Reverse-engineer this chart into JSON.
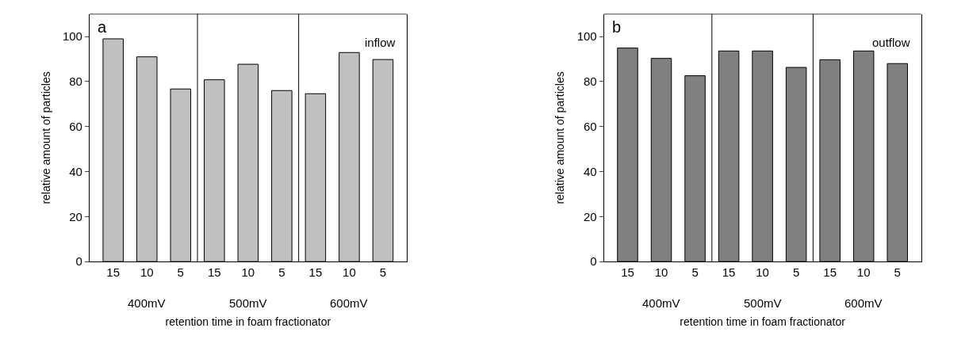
{
  "chart_data": [
    {
      "type": "bar",
      "categories": [
        "15",
        "10",
        "5",
        "15",
        "10",
        "5",
        "15",
        "10",
        "5"
      ],
      "values": [
        99,
        91,
        76.7,
        80.8,
        87.7,
        76,
        74.6,
        92.9,
        89.8
      ],
      "color": "#c0c0c0",
      "xlabel": "retention time in foam fractionator",
      "ylabel": "relative amount of particles",
      "ylim": [
        0,
        110
      ],
      "yticks": [
        0,
        20,
        40,
        60,
        80,
        100
      ],
      "annotations": [
        "a",
        "inflow",
        "400mV",
        "500mV",
        "600mV"
      ]
    },
    {
      "type": "bar",
      "categories": [
        "15",
        "10",
        "5",
        "15",
        "10",
        "5",
        "15",
        "10",
        "5"
      ],
      "values": [
        94.9,
        90.3,
        82.6,
        93.6,
        93.6,
        86.3,
        89.7,
        93.6,
        88
      ],
      "color": "#808080",
      "xlabel": "retention time in foam fractionator",
      "ylabel": "relative amount of particles",
      "ylim": [
        0,
        110
      ],
      "yticks": [
        0,
        20,
        40,
        60,
        80,
        100
      ],
      "annotations": [
        "b",
        "outflow",
        "400mV",
        "500mV",
        "600mV"
      ]
    }
  ]
}
